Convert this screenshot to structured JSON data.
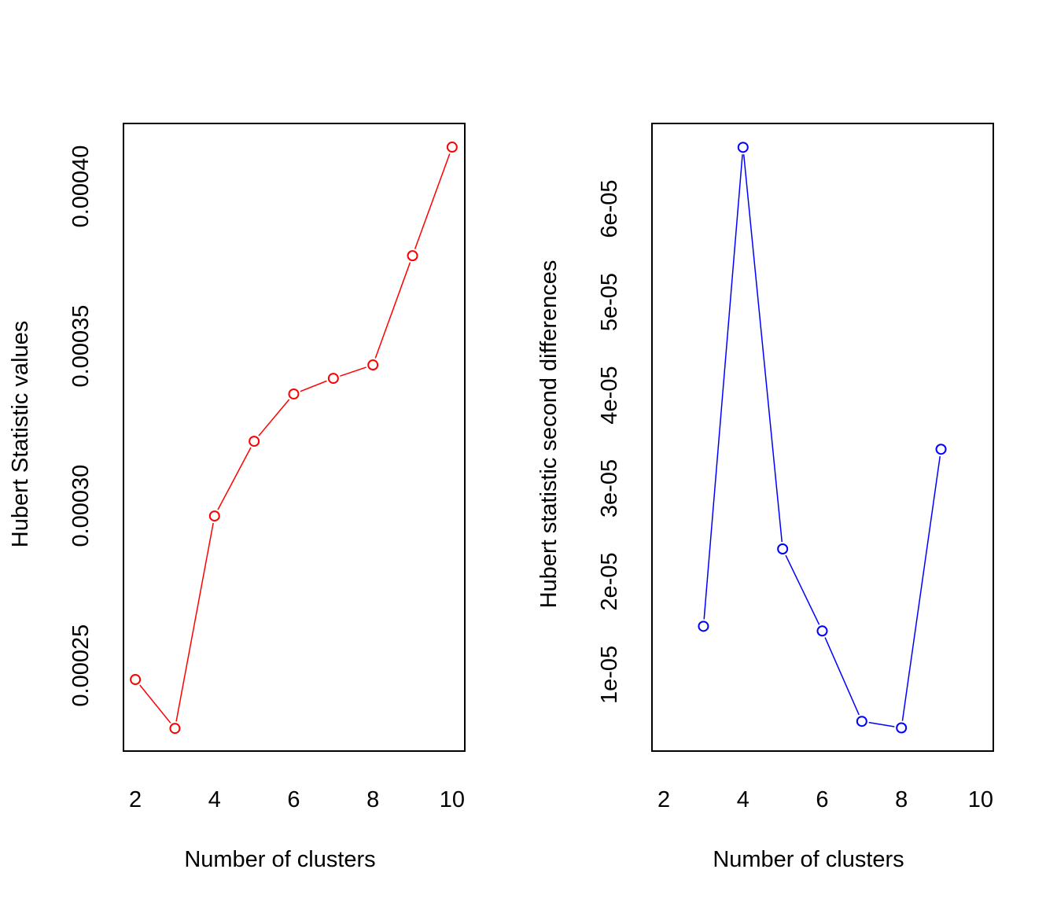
{
  "chart_data": [
    {
      "type": "line",
      "title": "",
      "xlabel": "Number of clusters",
      "ylabel": "Hubert Statistic values",
      "x": [
        2,
        3,
        4,
        5,
        6,
        7,
        8,
        9,
        10
      ],
      "series": [
        {
          "name": "Hubert Statistic values",
          "color": "#ff0000",
          "values": [
            0.0002456,
            0.0002303,
            0.0002968,
            0.0003202,
            0.000335,
            0.0003399,
            0.0003441,
            0.0003783,
            0.0004123
          ]
        }
      ],
      "xticks": [
        "2",
        "4",
        "6",
        "8",
        "10"
      ],
      "xtick_values": [
        2,
        4,
        6,
        8,
        10
      ],
      "yticks": [
        "0.00025",
        "0.00030",
        "0.00035",
        "0.00040"
      ],
      "ytick_values": [
        0.00025,
        0.0003,
        0.00035,
        0.0004
      ],
      "xlim": [
        1.7,
        10.32
      ],
      "ylim": [
        0.0002232,
        0.0004197
      ],
      "grid": false
    },
    {
      "type": "line",
      "title": "",
      "xlabel": "Number of clusters",
      "ylabel": "Hubert statistic second differences",
      "x": [
        3,
        4,
        5,
        6,
        7,
        8,
        9
      ],
      "series": [
        {
          "name": "Hubert statistic second differences",
          "color": "#0000ff",
          "values": [
            1.52e-05,
            6.66e-05,
            2.35e-05,
            1.47e-05,
            5e-06,
            4.3e-06,
            3.42e-05
          ]
        }
      ],
      "xticks": [
        "2",
        "4",
        "6",
        "8",
        "10"
      ],
      "xtick_values": [
        2,
        4,
        6,
        8,
        10
      ],
      "yticks": [
        "1e-05",
        "2e-05",
        "3e-05",
        "4e-05",
        "5e-05",
        "6e-05"
      ],
      "ytick_values": [
        1e-05,
        2e-05,
        3e-05,
        4e-05,
        5e-05,
        6e-05
      ],
      "xlim": [
        1.7,
        10.32
      ],
      "ylim": [
        1.81e-06,
        6.916e-05
      ],
      "grid": false
    }
  ]
}
